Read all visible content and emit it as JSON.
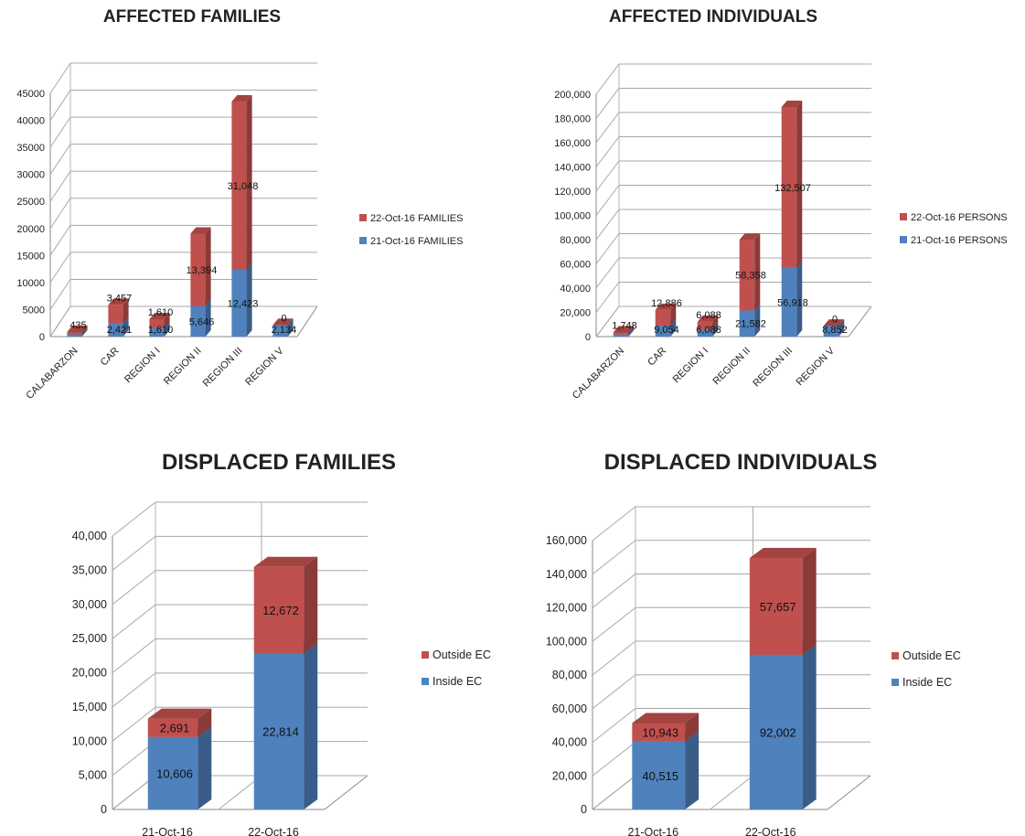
{
  "chart_data": [
    {
      "type": "bar",
      "stacked": true,
      "title": "AFFECTED FAMILIES",
      "categories": [
        "CALABARZON",
        "CAR",
        "REGION I",
        "REGION II",
        "REGION III",
        "REGION V"
      ],
      "series": [
        {
          "name": "21-Oct-16 FAMILIES",
          "color": "#4f81bd",
          "values": [
            435,
            2421,
            1610,
            5646,
            12423,
            2134
          ]
        },
        {
          "name": "22-Oct-16 FAMILIES",
          "color": "#c0504d",
          "values": [
            435,
            3457,
            1610,
            13394,
            31048,
            0
          ]
        }
      ],
      "data_labels": [
        [
          "",
          "2,421",
          "1,610",
          "5,646",
          "12,423",
          "2,134"
        ],
        [
          "435",
          "3,457",
          "1,610",
          "13,394",
          "31,048",
          "0"
        ]
      ],
      "ylim": [
        0,
        45000
      ],
      "yticks": [
        "0",
        "5000",
        "10000",
        "15000",
        "20000",
        "25000",
        "30000",
        "35000",
        "40000",
        "45000"
      ],
      "legend_position": "right",
      "grid": true
    },
    {
      "type": "bar",
      "stacked": true,
      "title": "AFFECTED INDIVIDUALS",
      "categories": [
        "CALABARZON",
        "CAR",
        "REGION I",
        "REGION II",
        "REGION III",
        "REGION V"
      ],
      "series": [
        {
          "name": "21-Oct-16 PERSONS",
          "color": "#4f81bd",
          "values": [
            1748,
            9054,
            6088,
            21582,
            56918,
            8852
          ]
        },
        {
          "name": "22-Oct-16 PERSONS",
          "color": "#c0504d",
          "values": [
            1748,
            12886,
            6088,
            58358,
            132507,
            0
          ]
        }
      ],
      "data_labels": [
        [
          "",
          "9,054",
          "6,088",
          "21,582",
          "56,918",
          "8,852"
        ],
        [
          "1,748",
          "12,886",
          "6,088",
          "58,358",
          "132,507",
          "0"
        ]
      ],
      "ylim": [
        0,
        200000
      ],
      "yticks": [
        "0",
        "20,000",
        "40,000",
        "60,000",
        "80,000",
        "100,000",
        "120,000",
        "140,000",
        "160,000",
        "180,000",
        "200,000"
      ],
      "legend_position": "right",
      "grid": true
    },
    {
      "type": "bar",
      "stacked": true,
      "title": "DISPLACED FAMILIES",
      "categories": [
        "21-Oct-16",
        "22-Oct-16"
      ],
      "series": [
        {
          "name": "Inside  EC",
          "color": "#4f81bd",
          "values": [
            10606,
            22814
          ]
        },
        {
          "name": "Outside EC",
          "color": "#c0504d",
          "values": [
            2691,
            12672
          ]
        }
      ],
      "data_labels": [
        [
          "10,606",
          "22,814"
        ],
        [
          "2,691",
          "12,672"
        ]
      ],
      "ylim": [
        0,
        40000
      ],
      "yticks": [
        "0",
        "5,000",
        "10,000",
        "15,000",
        "20,000",
        "25,000",
        "30,000",
        "35,000",
        "40,000"
      ],
      "legend_position": "right",
      "grid": true
    },
    {
      "type": "bar",
      "stacked": true,
      "title": "DISPLACED INDIVIDUALS",
      "categories": [
        "21-Oct-16",
        "22-Oct-16"
      ],
      "series": [
        {
          "name": "Inside  EC",
          "color": "#4f81bd",
          "values": [
            40515,
            92002
          ]
        },
        {
          "name": "Outside EC",
          "color": "#c0504d",
          "values": [
            10943,
            57657
          ]
        }
      ],
      "data_labels": [
        [
          "40,515",
          "92,002"
        ],
        [
          "10,943",
          "57,657"
        ]
      ],
      "ylim": [
        0,
        160000
      ],
      "yticks": [
        "0",
        "20,000",
        "40,000",
        "60,000",
        "80,000",
        "100,000",
        "120,000",
        "140,000",
        "160,000"
      ],
      "legend_position": "right",
      "grid": true
    }
  ]
}
